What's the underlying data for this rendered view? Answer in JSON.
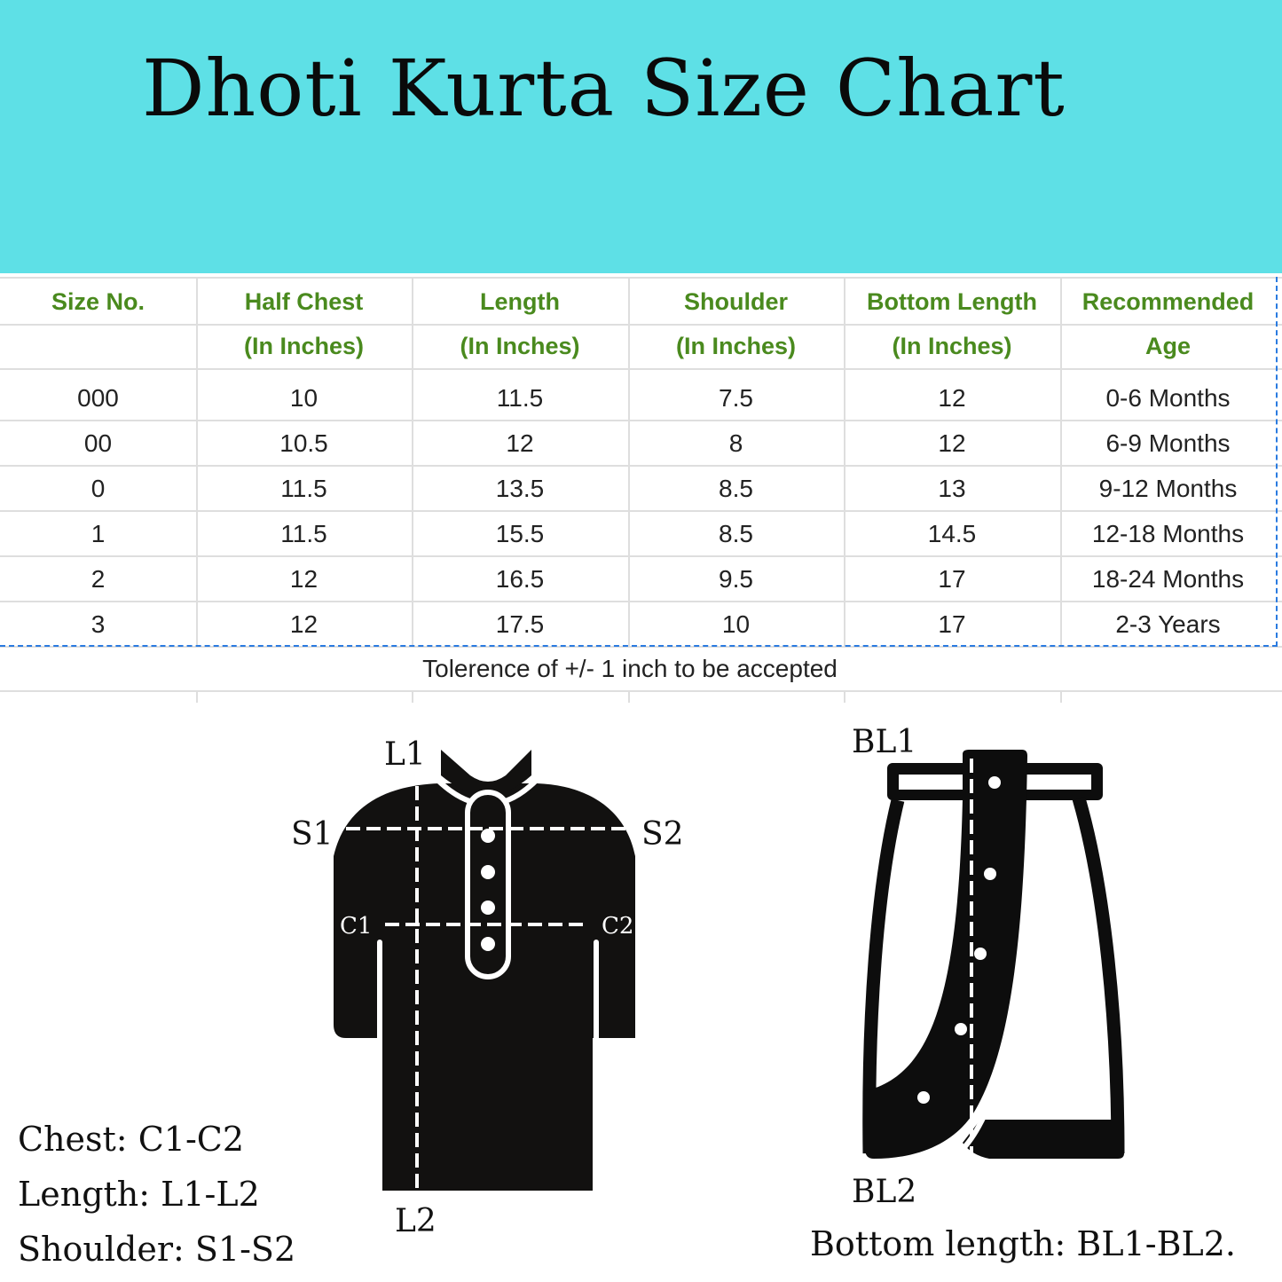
{
  "header": {
    "title": "Dhoti Kurta Size Chart",
    "background": "#5ee0e6"
  },
  "table": {
    "header_color": "#4a8a1e",
    "columns": [
      {
        "line1": "Size No.",
        "line2": ""
      },
      {
        "line1": "Half Chest",
        "line2": "(In Inches)"
      },
      {
        "line1": "Length",
        "line2": "(In Inches)"
      },
      {
        "line1": "Shoulder",
        "line2": "(In Inches)"
      },
      {
        "line1": "Bottom Length",
        "line2": "(In Inches)"
      },
      {
        "line1": "Recommended",
        "line2": "Age"
      }
    ],
    "rows": [
      [
        "000",
        "10",
        "11.5",
        "7.5",
        "12",
        "0-6 Months"
      ],
      [
        "00",
        "10.5",
        "12",
        "8",
        "12",
        "6-9 Months"
      ],
      [
        "0",
        "11.5",
        "13.5",
        "8.5",
        "13",
        "9-12 Months"
      ],
      [
        "1",
        "11.5",
        "15.5",
        "8.5",
        "14.5",
        "12-18 Months"
      ],
      [
        "2",
        "12",
        "16.5",
        "9.5",
        "17",
        "18-24 Months"
      ],
      [
        "3",
        "12",
        "17.5",
        "10",
        "17",
        "2-3 Years"
      ]
    ],
    "note": "Tolerence of +/- 1 inch to be accepted"
  },
  "kurta": {
    "labels": {
      "l1": "L1",
      "l2": "L2",
      "s1": "S1",
      "s2": "S2",
      "c1": "C1",
      "c2": "C2"
    }
  },
  "dhoti": {
    "labels": {
      "bl1": "BL1",
      "bl2": "BL2"
    }
  },
  "legend": {
    "chest": "Chest: C1-C2",
    "length": "Length: L1-L2",
    "shoulder": "Shoulder: S1-S2",
    "bottom": "Bottom length: BL1-BL2."
  }
}
